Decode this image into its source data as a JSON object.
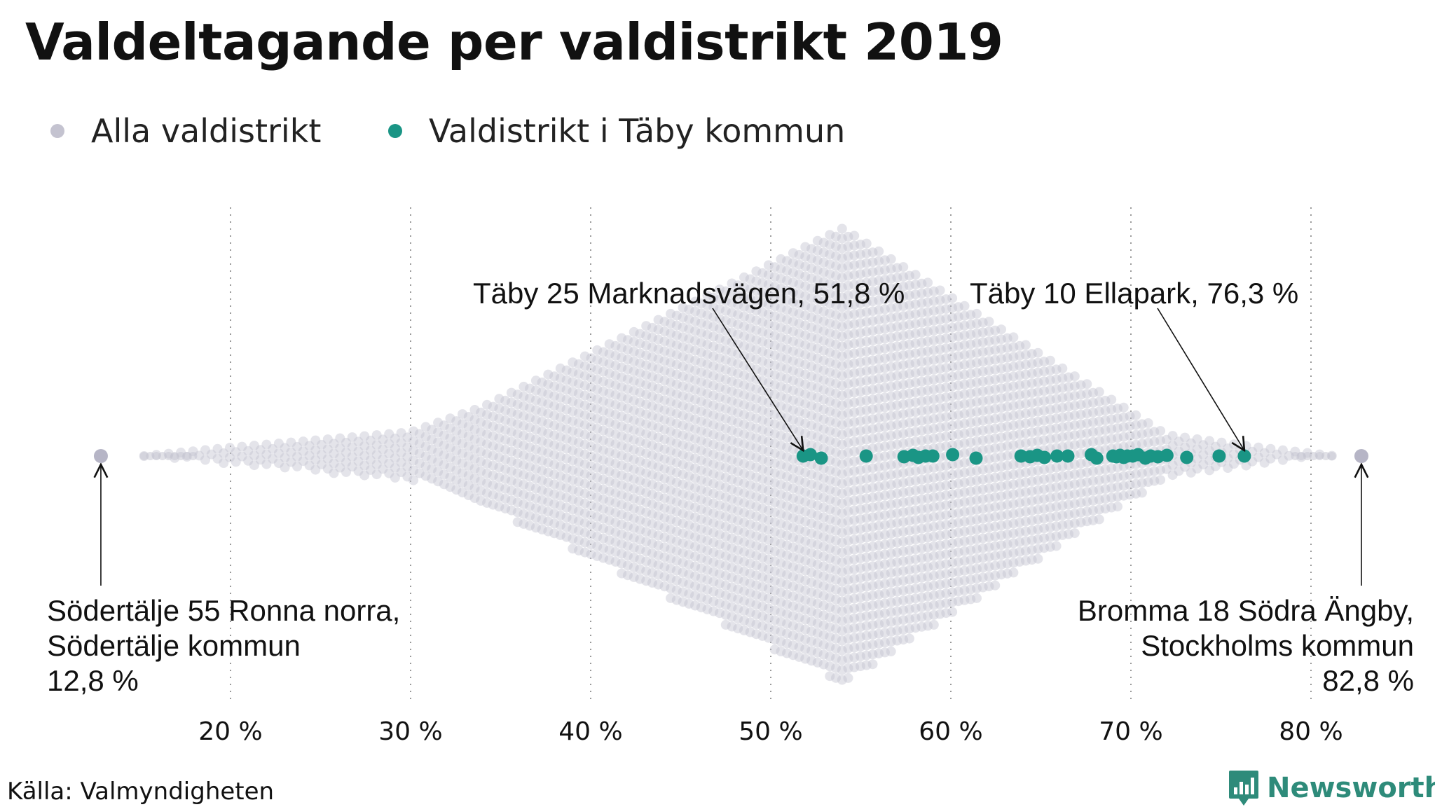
{
  "title": "Valdeltagande per valdistrikt 2019",
  "legend": [
    {
      "label": "Alla valdistrikt",
      "color": "#c4c3d0"
    },
    {
      "label": "Valdistrikt i Täby kommun",
      "color": "#1a9585"
    }
  ],
  "source": "Källa: Valmyndigheten",
  "brand": "Newsworthy",
  "chart_data": {
    "type": "scatter",
    "subtype": "beeswarm",
    "x_ticks": [
      20,
      30,
      40,
      50,
      60,
      70,
      80
    ],
    "x_tick_labels": [
      "20 %",
      "30 %",
      "40 %",
      "50 %",
      "60 %",
      "70 %",
      "80 %"
    ],
    "xlim": [
      12,
      84
    ],
    "grid": "vertical dotted",
    "legend_position": "top-left",
    "series": [
      {
        "name": "Alla valdistrikt",
        "color": "#c4c3d0",
        "distribution_note_values": {
          "min": 12.8,
          "max": 82.8,
          "mode": 54.0
        },
        "outliers": [
          12.8,
          82.8
        ]
      },
      {
        "name": "Valdistrikt i Täby kommun",
        "color": "#1a9585",
        "values": [
          51.8,
          52.2,
          52.8,
          55.3,
          57.4,
          57.9,
          58.2,
          58.6,
          59.0,
          60.1,
          61.4,
          63.9,
          64.4,
          64.8,
          65.2,
          65.9,
          66.5,
          67.8,
          68.1,
          69.0,
          69.2,
          69.4,
          69.6,
          69.8,
          70.1,
          70.4,
          70.8,
          71.1,
          71.5,
          72.0,
          73.1,
          74.9,
          76.3
        ]
      }
    ],
    "annotations": [
      {
        "lines": [
          "Täby 25 Marknadsvägen, 51,8 %"
        ],
        "value": 51.8
      },
      {
        "lines": [
          "Täby 10  Ellapark, 76,3 %"
        ],
        "value": 76.3
      },
      {
        "lines": [
          "Södertälje 55 Ronna norra,",
          "Södertälje kommun",
          "12,8 %"
        ],
        "value": 12.8
      },
      {
        "lines": [
          "Bromma 18 Södra Ängby,",
          "Stockholms kommun",
          "82,8 %"
        ],
        "value": 82.8
      }
    ]
  }
}
